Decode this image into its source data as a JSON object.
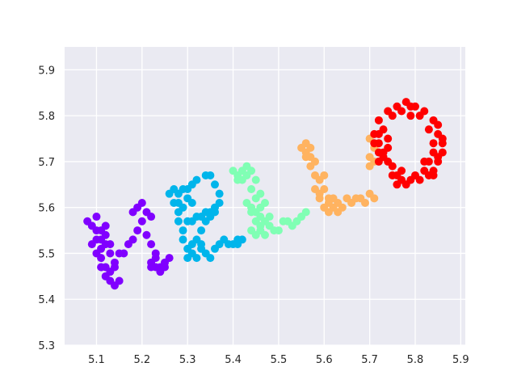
{
  "chart_data": {
    "type": "scatter",
    "title": "",
    "xlabel": "",
    "ylabel": "",
    "xlim": [
      5.03,
      5.91
    ],
    "ylim": [
      5.3,
      5.95
    ],
    "xticks": [
      "5.1",
      "5.2",
      "5.3",
      "5.4",
      "5.5",
      "5.6",
      "5.7",
      "5.8",
      "5.9"
    ],
    "yticks": [
      "5.3",
      "5.4",
      "5.5",
      "5.6",
      "5.7",
      "5.8",
      "5.9"
    ],
    "grid": true,
    "legend": "none",
    "background": "#eaeaf2",
    "series": [
      {
        "color": "#8000ff",
        "points": [
          [
            5.08,
            5.57
          ],
          [
            5.09,
            5.56
          ],
          [
            5.1,
            5.55
          ],
          [
            5.1,
            5.53
          ],
          [
            5.11,
            5.51
          ],
          [
            5.11,
            5.49
          ],
          [
            5.12,
            5.47
          ],
          [
            5.12,
            5.45
          ],
          [
            5.13,
            5.44
          ],
          [
            5.14,
            5.43
          ],
          [
            5.13,
            5.46
          ],
          [
            5.14,
            5.48
          ],
          [
            5.15,
            5.5
          ],
          [
            5.12,
            5.52
          ],
          [
            5.11,
            5.55
          ],
          [
            5.1,
            5.58
          ],
          [
            5.12,
            5.54
          ],
          [
            5.13,
            5.52
          ],
          [
            5.13,
            5.5
          ],
          [
            5.15,
            5.44
          ],
          [
            5.14,
            5.47
          ],
          [
            5.16,
            5.5
          ],
          [
            5.17,
            5.52
          ],
          [
            5.18,
            5.53
          ],
          [
            5.19,
            5.55
          ],
          [
            5.2,
            5.57
          ],
          [
            5.19,
            5.6
          ],
          [
            5.2,
            5.61
          ],
          [
            5.21,
            5.59
          ],
          [
            5.22,
            5.58
          ],
          [
            5.18,
            5.59
          ],
          [
            5.11,
            5.53
          ],
          [
            5.12,
            5.56
          ],
          [
            5.09,
            5.52
          ],
          [
            5.1,
            5.5
          ],
          [
            5.11,
            5.47
          ],
          [
            5.21,
            5.54
          ],
          [
            5.22,
            5.52
          ],
          [
            5.23,
            5.5
          ],
          [
            5.22,
            5.48
          ],
          [
            5.23,
            5.47
          ],
          [
            5.24,
            5.46
          ],
          [
            5.25,
            5.48
          ],
          [
            5.26,
            5.49
          ],
          [
            5.24,
            5.47
          ],
          [
            5.23,
            5.49
          ],
          [
            5.25,
            5.47
          ],
          [
            5.22,
            5.47
          ]
        ]
      },
      {
        "color": "#00b5eb",
        "points": [
          [
            5.26,
            5.63
          ],
          [
            5.27,
            5.64
          ],
          [
            5.28,
            5.63
          ],
          [
            5.27,
            5.61
          ],
          [
            5.28,
            5.59
          ],
          [
            5.28,
            5.57
          ],
          [
            5.29,
            5.55
          ],
          [
            5.29,
            5.53
          ],
          [
            5.3,
            5.51
          ],
          [
            5.3,
            5.49
          ],
          [
            5.31,
            5.5
          ],
          [
            5.31,
            5.52
          ],
          [
            5.32,
            5.53
          ],
          [
            5.33,
            5.51
          ],
          [
            5.34,
            5.5
          ],
          [
            5.35,
            5.49
          ],
          [
            5.36,
            5.51
          ],
          [
            5.37,
            5.52
          ],
          [
            5.38,
            5.53
          ],
          [
            5.39,
            5.52
          ],
          [
            5.4,
            5.52
          ],
          [
            5.41,
            5.53
          ],
          [
            5.42,
            5.53
          ],
          [
            5.41,
            5.52
          ],
          [
            5.3,
            5.57
          ],
          [
            5.31,
            5.57
          ],
          [
            5.32,
            5.58
          ],
          [
            5.33,
            5.58
          ],
          [
            5.34,
            5.59
          ],
          [
            5.35,
            5.59
          ],
          [
            5.36,
            5.6
          ],
          [
            5.37,
            5.61
          ],
          [
            5.37,
            5.63
          ],
          [
            5.36,
            5.65
          ],
          [
            5.35,
            5.67
          ],
          [
            5.34,
            5.67
          ],
          [
            5.32,
            5.66
          ],
          [
            5.31,
            5.65
          ],
          [
            5.3,
            5.64
          ],
          [
            5.29,
            5.64
          ],
          [
            5.3,
            5.62
          ],
          [
            5.31,
            5.61
          ],
          [
            5.33,
            5.55
          ],
          [
            5.34,
            5.57
          ],
          [
            5.35,
            5.58
          ],
          [
            5.36,
            5.59
          ],
          [
            5.29,
            5.6
          ],
          [
            5.28,
            5.61
          ],
          [
            5.32,
            5.49
          ],
          [
            5.33,
            5.52
          ]
        ]
      },
      {
        "color": "#80ffb4",
        "points": [
          [
            5.4,
            5.68
          ],
          [
            5.41,
            5.67
          ],
          [
            5.42,
            5.66
          ],
          [
            5.42,
            5.68
          ],
          [
            5.43,
            5.69
          ],
          [
            5.44,
            5.68
          ],
          [
            5.45,
            5.66
          ],
          [
            5.44,
            5.64
          ],
          [
            5.43,
            5.61
          ],
          [
            5.44,
            5.6
          ],
          [
            5.45,
            5.59
          ],
          [
            5.46,
            5.58
          ],
          [
            5.47,
            5.57
          ],
          [
            5.46,
            5.6
          ],
          [
            5.47,
            5.61
          ],
          [
            5.45,
            5.57
          ],
          [
            5.44,
            5.55
          ],
          [
            5.45,
            5.54
          ],
          [
            5.46,
            5.55
          ],
          [
            5.47,
            5.54
          ],
          [
            5.48,
            5.56
          ],
          [
            5.49,
            5.55
          ],
          [
            5.5,
            5.55
          ],
          [
            5.51,
            5.57
          ],
          [
            5.52,
            5.57
          ],
          [
            5.53,
            5.56
          ],
          [
            5.54,
            5.57
          ],
          [
            5.55,
            5.58
          ],
          [
            5.56,
            5.59
          ],
          [
            5.45,
            5.62
          ],
          [
            5.43,
            5.67
          ],
          [
            5.41,
            5.66
          ],
          [
            5.46,
            5.63
          ],
          [
            5.44,
            5.59
          ],
          [
            5.48,
            5.58
          ],
          [
            5.46,
            5.56
          ]
        ]
      },
      {
        "color": "#ffb360",
        "points": [
          [
            5.55,
            5.73
          ],
          [
            5.56,
            5.74
          ],
          [
            5.57,
            5.73
          ],
          [
            5.56,
            5.71
          ],
          [
            5.57,
            5.69
          ],
          [
            5.58,
            5.67
          ],
          [
            5.59,
            5.66
          ],
          [
            5.6,
            5.64
          ],
          [
            5.61,
            5.62
          ],
          [
            5.6,
            5.6
          ],
          [
            5.61,
            5.59
          ],
          [
            5.62,
            5.6
          ],
          [
            5.63,
            5.61
          ],
          [
            5.64,
            5.6
          ],
          [
            5.65,
            5.62
          ],
          [
            5.66,
            5.61
          ],
          [
            5.67,
            5.62
          ],
          [
            5.68,
            5.62
          ],
          [
            5.69,
            5.61
          ],
          [
            5.7,
            5.63
          ],
          [
            5.71,
            5.62
          ],
          [
            5.58,
            5.64
          ],
          [
            5.59,
            5.62
          ],
          [
            5.57,
            5.71
          ],
          [
            5.58,
            5.7
          ],
          [
            5.56,
            5.72
          ],
          [
            5.6,
            5.67
          ],
          [
            5.62,
            5.62
          ],
          [
            5.7,
            5.69
          ],
          [
            5.7,
            5.71
          ],
          [
            5.71,
            5.73
          ],
          [
            5.7,
            5.75
          ],
          [
            5.71,
            5.7
          ],
          [
            5.61,
            5.61
          ],
          [
            5.63,
            5.59
          ],
          [
            5.59,
            5.63
          ]
        ]
      },
      {
        "color": "#ff0000",
        "points": [
          [
            5.71,
            5.74
          ],
          [
            5.72,
            5.76
          ],
          [
            5.72,
            5.79
          ],
          [
            5.74,
            5.81
          ],
          [
            5.76,
            5.82
          ],
          [
            5.78,
            5.83
          ],
          [
            5.8,
            5.82
          ],
          [
            5.82,
            5.81
          ],
          [
            5.84,
            5.79
          ],
          [
            5.85,
            5.76
          ],
          [
            5.86,
            5.74
          ],
          [
            5.86,
            5.72
          ],
          [
            5.85,
            5.7
          ],
          [
            5.84,
            5.68
          ],
          [
            5.83,
            5.67
          ],
          [
            5.81,
            5.66
          ],
          [
            5.79,
            5.66
          ],
          [
            5.77,
            5.66
          ],
          [
            5.76,
            5.67
          ],
          [
            5.75,
            5.69
          ],
          [
            5.74,
            5.7
          ],
          [
            5.73,
            5.72
          ],
          [
            5.72,
            5.74
          ],
          [
            5.74,
            5.75
          ],
          [
            5.72,
            5.72
          ],
          [
            5.73,
            5.77
          ],
          [
            5.77,
            5.81
          ],
          [
            5.79,
            5.8
          ],
          [
            5.81,
            5.8
          ],
          [
            5.83,
            5.77
          ],
          [
            5.84,
            5.74
          ],
          [
            5.85,
            5.71
          ],
          [
            5.83,
            5.7
          ],
          [
            5.82,
            5.68
          ],
          [
            5.8,
            5.67
          ],
          [
            5.78,
            5.65
          ],
          [
            5.76,
            5.65
          ],
          [
            5.75,
            5.67
          ],
          [
            5.73,
            5.71
          ],
          [
            5.71,
            5.76
          ],
          [
            5.85,
            5.78
          ],
          [
            5.86,
            5.75
          ],
          [
            5.82,
            5.7
          ],
          [
            5.74,
            5.73
          ],
          [
            5.77,
            5.68
          ],
          [
            5.84,
            5.72
          ],
          [
            5.75,
            5.8
          ],
          [
            5.79,
            5.82
          ],
          [
            5.72,
            5.7
          ],
          [
            5.84,
            5.67
          ]
        ]
      }
    ]
  }
}
